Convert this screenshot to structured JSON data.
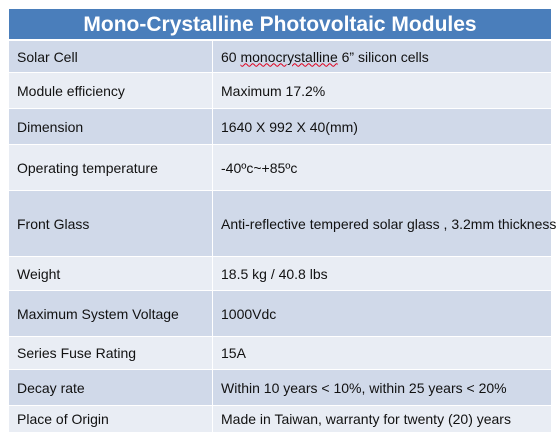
{
  "title": "Mono-Crystalline Photovoltaic Modules",
  "rows": [
    {
      "label": "Solar  Cell",
      "value_pre": "60 ",
      "value_mark": "monocrystalline",
      "value_post": " 6”  silicon cells"
    },
    {
      "label": "Module efficiency",
      "value": "Maximum 17.2%"
    },
    {
      "label": "Dimension",
      "value": "1640 X 992 X 40(mm)"
    },
    {
      "label": "Operating temperature",
      "value": "-40ºc~+85ºc"
    },
    {
      "label": "Front Glass",
      "value": "Anti-reflective tempered solar glass , 3.2mm thickness"
    },
    {
      "label": "Weight",
      "value": "18.5 kg / 40.8 lbs"
    },
    {
      "label": "Maximum System Voltage",
      "value": "1000Vdc"
    },
    {
      "label": "Series Fuse Rating",
      "value": "15A"
    },
    {
      "label": "Decay rate",
      "value": "Within 10 years < 10%, within 25 years < 20%"
    },
    {
      "label": "Place of Origin",
      "value": "Made in Taiwan, warranty for twenty (20) years"
    }
  ]
}
